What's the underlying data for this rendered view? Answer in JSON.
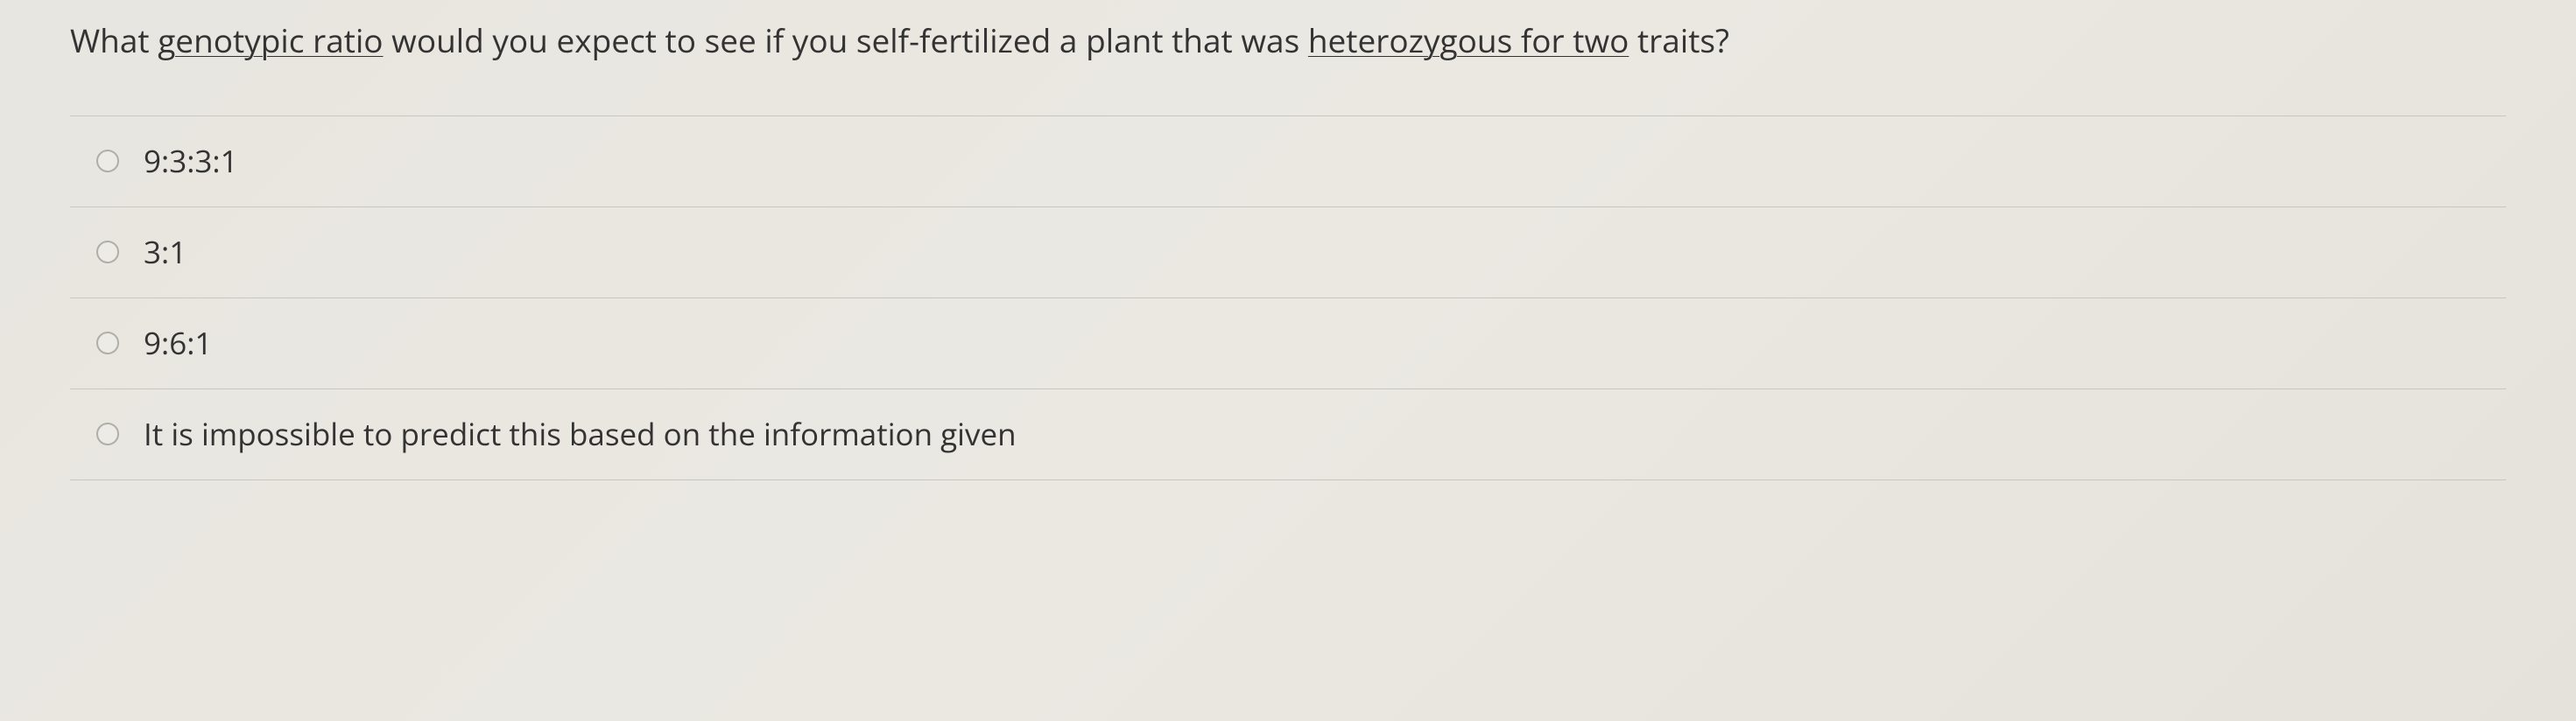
{
  "question": {
    "prefix": "What ",
    "underlined1": "genotypic ratio",
    "middle1": " would you expect to see if you self-fertilized a plant that was ",
    "underlined2": "heterozygous for two",
    "suffix": " traits?"
  },
  "options": [
    {
      "label": "9:3:3:1"
    },
    {
      "label": "3:1"
    },
    {
      "label": "9:6:1"
    },
    {
      "label": "It is impossible to predict this based on the information given"
    }
  ],
  "colors": {
    "text": "#333333",
    "border": "#c8c6c0",
    "radio_border": "#b0aea8",
    "background": "#e8e6e0"
  }
}
